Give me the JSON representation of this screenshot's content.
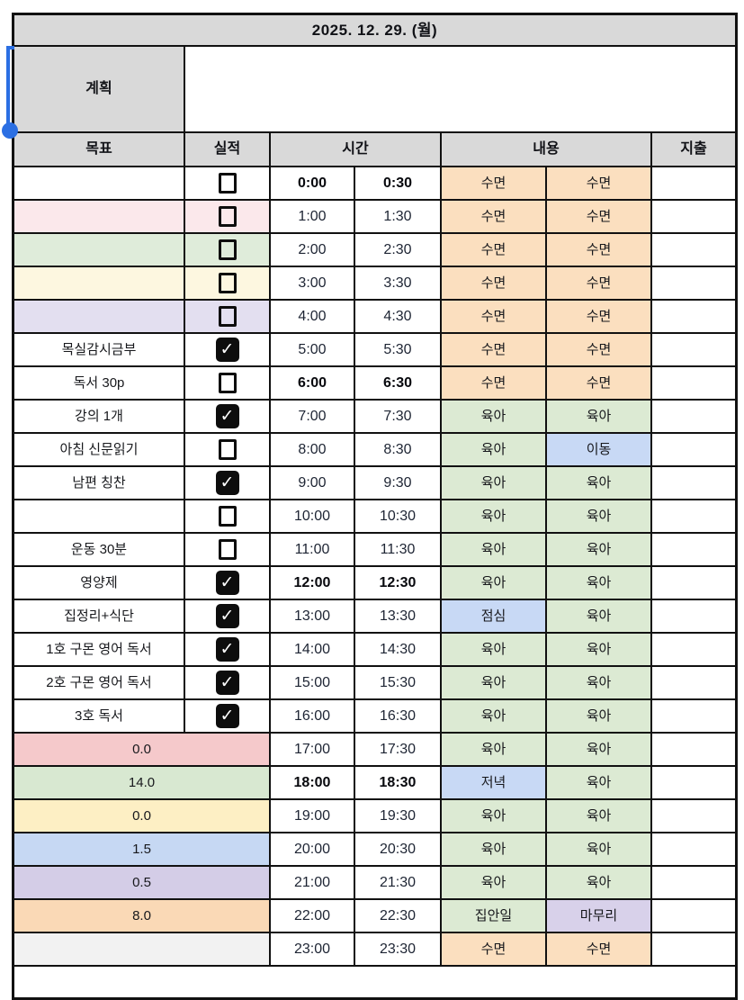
{
  "title": "2025. 12. 29. (월)",
  "plan": {
    "label": "계획",
    "content": ""
  },
  "columns": {
    "goal": "목표",
    "done": "실적",
    "time": "시간",
    "content": "내용",
    "expense": "지출"
  },
  "footer": {
    "content": ""
  },
  "colors": {
    "header_gray": "#D9D9D9",
    "sleep_peach": "#FBDFBF",
    "care_green": "#DCEAD3",
    "event_blue": "#C8D9F5",
    "finish_purple": "#D8D1EA",
    "border_black": "#111111",
    "selection_blue": "#2B6FE3"
  },
  "selection_handle": {
    "color": "#2B6FE3"
  },
  "rows": [
    {
      "goal": "",
      "goal_bg": "#FFFFFF",
      "merged": false,
      "checked": false,
      "bold": true,
      "t1": "0:00",
      "t2": "0:30",
      "c1": "수면",
      "c1_bg": "#FBDFBF",
      "c2": "수면",
      "c2_bg": "#FBDFBF",
      "expense": ""
    },
    {
      "goal": "",
      "goal_bg": "#FBE8EB",
      "merged": false,
      "checked": false,
      "bold": false,
      "t1": "1:00",
      "t2": "1:30",
      "c1": "수면",
      "c1_bg": "#FBDFBF",
      "c2": "수면",
      "c2_bg": "#FBDFBF",
      "expense": ""
    },
    {
      "goal": "",
      "goal_bg": "#DFECDA",
      "merged": false,
      "checked": false,
      "bold": false,
      "t1": "2:00",
      "t2": "2:30",
      "c1": "수면",
      "c1_bg": "#FBDFBF",
      "c2": "수면",
      "c2_bg": "#FBDFBF",
      "expense": ""
    },
    {
      "goal": "",
      "goal_bg": "#FDF7E0",
      "merged": false,
      "checked": false,
      "bold": false,
      "t1": "3:00",
      "t2": "3:30",
      "c1": "수면",
      "c1_bg": "#FBDFBF",
      "c2": "수면",
      "c2_bg": "#FBDFBF",
      "expense": ""
    },
    {
      "goal": "",
      "goal_bg": "#E3DFF0",
      "merged": false,
      "checked": false,
      "bold": false,
      "t1": "4:00",
      "t2": "4:30",
      "c1": "수면",
      "c1_bg": "#FBDFBF",
      "c2": "수면",
      "c2_bg": "#FBDFBF",
      "expense": ""
    },
    {
      "goal": "목실감시금부",
      "goal_bg": "#FFFFFF",
      "merged": false,
      "checked": true,
      "bold": false,
      "t1": "5:00",
      "t2": "5:30",
      "c1": "수면",
      "c1_bg": "#FBDFBF",
      "c2": "수면",
      "c2_bg": "#FBDFBF",
      "expense": ""
    },
    {
      "goal": "독서 30p",
      "goal_bg": "#FFFFFF",
      "merged": false,
      "checked": false,
      "bold": true,
      "t1": "6:00",
      "t2": "6:30",
      "c1": "수면",
      "c1_bg": "#FBDFBF",
      "c2": "수면",
      "c2_bg": "#FBDFBF",
      "expense": ""
    },
    {
      "goal": "강의 1개",
      "goal_bg": "#FFFFFF",
      "merged": false,
      "checked": true,
      "bold": false,
      "t1": "7:00",
      "t2": "7:30",
      "c1": "육아",
      "c1_bg": "#DCEAD3",
      "c2": "육아",
      "c2_bg": "#DCEAD3",
      "expense": ""
    },
    {
      "goal": "아침 신문읽기",
      "goal_bg": "#FFFFFF",
      "merged": false,
      "checked": false,
      "bold": false,
      "t1": "8:00",
      "t2": "8:30",
      "c1": "육아",
      "c1_bg": "#DCEAD3",
      "c2": "이동",
      "c2_bg": "#C8D9F5",
      "expense": ""
    },
    {
      "goal": "남편 칭찬",
      "goal_bg": "#FFFFFF",
      "merged": false,
      "checked": true,
      "bold": false,
      "t1": "9:00",
      "t2": "9:30",
      "c1": "육아",
      "c1_bg": "#DCEAD3",
      "c2": "육아",
      "c2_bg": "#DCEAD3",
      "expense": ""
    },
    {
      "goal": "",
      "goal_bg": "#FFFFFF",
      "merged": false,
      "checked": false,
      "bold": false,
      "t1": "10:00",
      "t2": "10:30",
      "c1": "육아",
      "c1_bg": "#DCEAD3",
      "c2": "육아",
      "c2_bg": "#DCEAD3",
      "expense": ""
    },
    {
      "goal": "운동 30분",
      "goal_bg": "#FFFFFF",
      "merged": false,
      "checked": false,
      "bold": false,
      "t1": "11:00",
      "t2": "11:30",
      "c1": "육아",
      "c1_bg": "#DCEAD3",
      "c2": "육아",
      "c2_bg": "#DCEAD3",
      "expense": ""
    },
    {
      "goal": "영양제",
      "goal_bg": "#FFFFFF",
      "merged": false,
      "checked": true,
      "bold": true,
      "t1": "12:00",
      "t2": "12:30",
      "c1": "육아",
      "c1_bg": "#DCEAD3",
      "c2": "육아",
      "c2_bg": "#DCEAD3",
      "expense": ""
    },
    {
      "goal": "집정리+식단",
      "goal_bg": "#FFFFFF",
      "merged": false,
      "checked": true,
      "bold": false,
      "t1": "13:00",
      "t2": "13:30",
      "c1": "점심",
      "c1_bg": "#C8D9F5",
      "c2": "육아",
      "c2_bg": "#DCEAD3",
      "expense": ""
    },
    {
      "goal": "1호 구몬 영어 독서",
      "goal_bg": "#FFFFFF",
      "merged": false,
      "checked": true,
      "bold": false,
      "t1": "14:00",
      "t2": "14:30",
      "c1": "육아",
      "c1_bg": "#DCEAD3",
      "c2": "육아",
      "c2_bg": "#DCEAD3",
      "expense": ""
    },
    {
      "goal": "2호 구몬 영어 독서",
      "goal_bg": "#FFFFFF",
      "merged": false,
      "checked": true,
      "bold": false,
      "t1": "15:00",
      "t2": "15:30",
      "c1": "육아",
      "c1_bg": "#DCEAD3",
      "c2": "육아",
      "c2_bg": "#DCEAD3",
      "expense": ""
    },
    {
      "goal": "3호 독서",
      "goal_bg": "#FFFFFF",
      "merged": false,
      "checked": true,
      "bold": false,
      "t1": "16:00",
      "t2": "16:30",
      "c1": "육아",
      "c1_bg": "#DCEAD3",
      "c2": "육아",
      "c2_bg": "#DCEAD3",
      "expense": ""
    },
    {
      "goal": "0.0",
      "goal_bg": "#F5C9CB",
      "merged": true,
      "checked": null,
      "bold": false,
      "t1": "17:00",
      "t2": "17:30",
      "c1": "육아",
      "c1_bg": "#DCEAD3",
      "c2": "육아",
      "c2_bg": "#DCEAD3",
      "expense": ""
    },
    {
      "goal": "14.0",
      "goal_bg": "#D8E8D1",
      "merged": true,
      "checked": null,
      "bold": true,
      "t1": "18:00",
      "t2": "18:30",
      "c1": "저녁",
      "c1_bg": "#C8D9F5",
      "c2": "육아",
      "c2_bg": "#DCEAD3",
      "expense": ""
    },
    {
      "goal": "0.0",
      "goal_bg": "#FDEFC4",
      "merged": true,
      "checked": null,
      "bold": false,
      "t1": "19:00",
      "t2": "19:30",
      "c1": "육아",
      "c1_bg": "#DCEAD3",
      "c2": "육아",
      "c2_bg": "#DCEAD3",
      "expense": ""
    },
    {
      "goal": "1.5",
      "goal_bg": "#C6D8F3",
      "merged": true,
      "checked": null,
      "bold": false,
      "t1": "20:00",
      "t2": "20:30",
      "c1": "육아",
      "c1_bg": "#DCEAD3",
      "c2": "육아",
      "c2_bg": "#DCEAD3",
      "expense": ""
    },
    {
      "goal": "0.5",
      "goal_bg": "#D4CDE7",
      "merged": true,
      "checked": null,
      "bold": false,
      "t1": "21:00",
      "t2": "21:30",
      "c1": "육아",
      "c1_bg": "#DCEAD3",
      "c2": "육아",
      "c2_bg": "#DCEAD3",
      "expense": ""
    },
    {
      "goal": "8.0",
      "goal_bg": "#FAD9B6",
      "merged": true,
      "checked": null,
      "bold": false,
      "t1": "22:00",
      "t2": "22:30",
      "c1": "집안일",
      "c1_bg": "#DCEAD3",
      "c2": "마무리",
      "c2_bg": "#D8D1EA",
      "expense": ""
    },
    {
      "goal": "",
      "goal_bg": "#F2F2F2",
      "merged": true,
      "checked": null,
      "bold": false,
      "t1": "23:00",
      "t2": "23:30",
      "c1": "수면",
      "c1_bg": "#FBDFBF",
      "c2": "수면",
      "c2_bg": "#FBDFBF",
      "expense": ""
    }
  ]
}
